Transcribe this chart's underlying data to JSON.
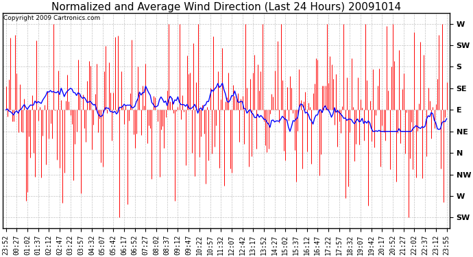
{
  "title": "Normalized and Average Wind Direction (Last 24 Hours) 20091014",
  "copyright": "Copyright 2009 Cartronics.com",
  "background_color": "#ffffff",
  "plot_bg_color": "#ffffff",
  "grid_color": "#bbbbbb",
  "bar_color": "#ff0000",
  "line_color": "#0000ff",
  "ytick_labels": [
    "W",
    "SW",
    "S",
    "SE",
    "E",
    "NE",
    "N",
    "NW",
    "W",
    "SW"
  ],
  "ytick_values": [
    9,
    8,
    7,
    6,
    5,
    4,
    3,
    2,
    1,
    0
  ],
  "ylim": [
    -0.5,
    9.5
  ],
  "num_points": 288,
  "seed": 42,
  "title_fontsize": 11,
  "copyright_fontsize": 6.5,
  "tick_fontsize": 8,
  "xtick_labels": [
    "23:52",
    "00:27",
    "01:02",
    "01:37",
    "02:12",
    "02:47",
    "03:22",
    "03:57",
    "04:32",
    "05:07",
    "05:42",
    "06:17",
    "06:52",
    "07:27",
    "08:02",
    "08:37",
    "09:12",
    "09:47",
    "10:22",
    "10:57",
    "11:32",
    "12:07",
    "12:42",
    "13:17",
    "13:52",
    "14:27",
    "15:02",
    "15:37",
    "16:12",
    "16:47",
    "17:22",
    "17:57",
    "18:32",
    "19:07",
    "19:42",
    "20:17",
    "20:52",
    "21:27",
    "22:02",
    "22:37",
    "23:12",
    "23:55"
  ],
  "figwidth": 6.9,
  "figheight": 3.75,
  "dpi": 100
}
